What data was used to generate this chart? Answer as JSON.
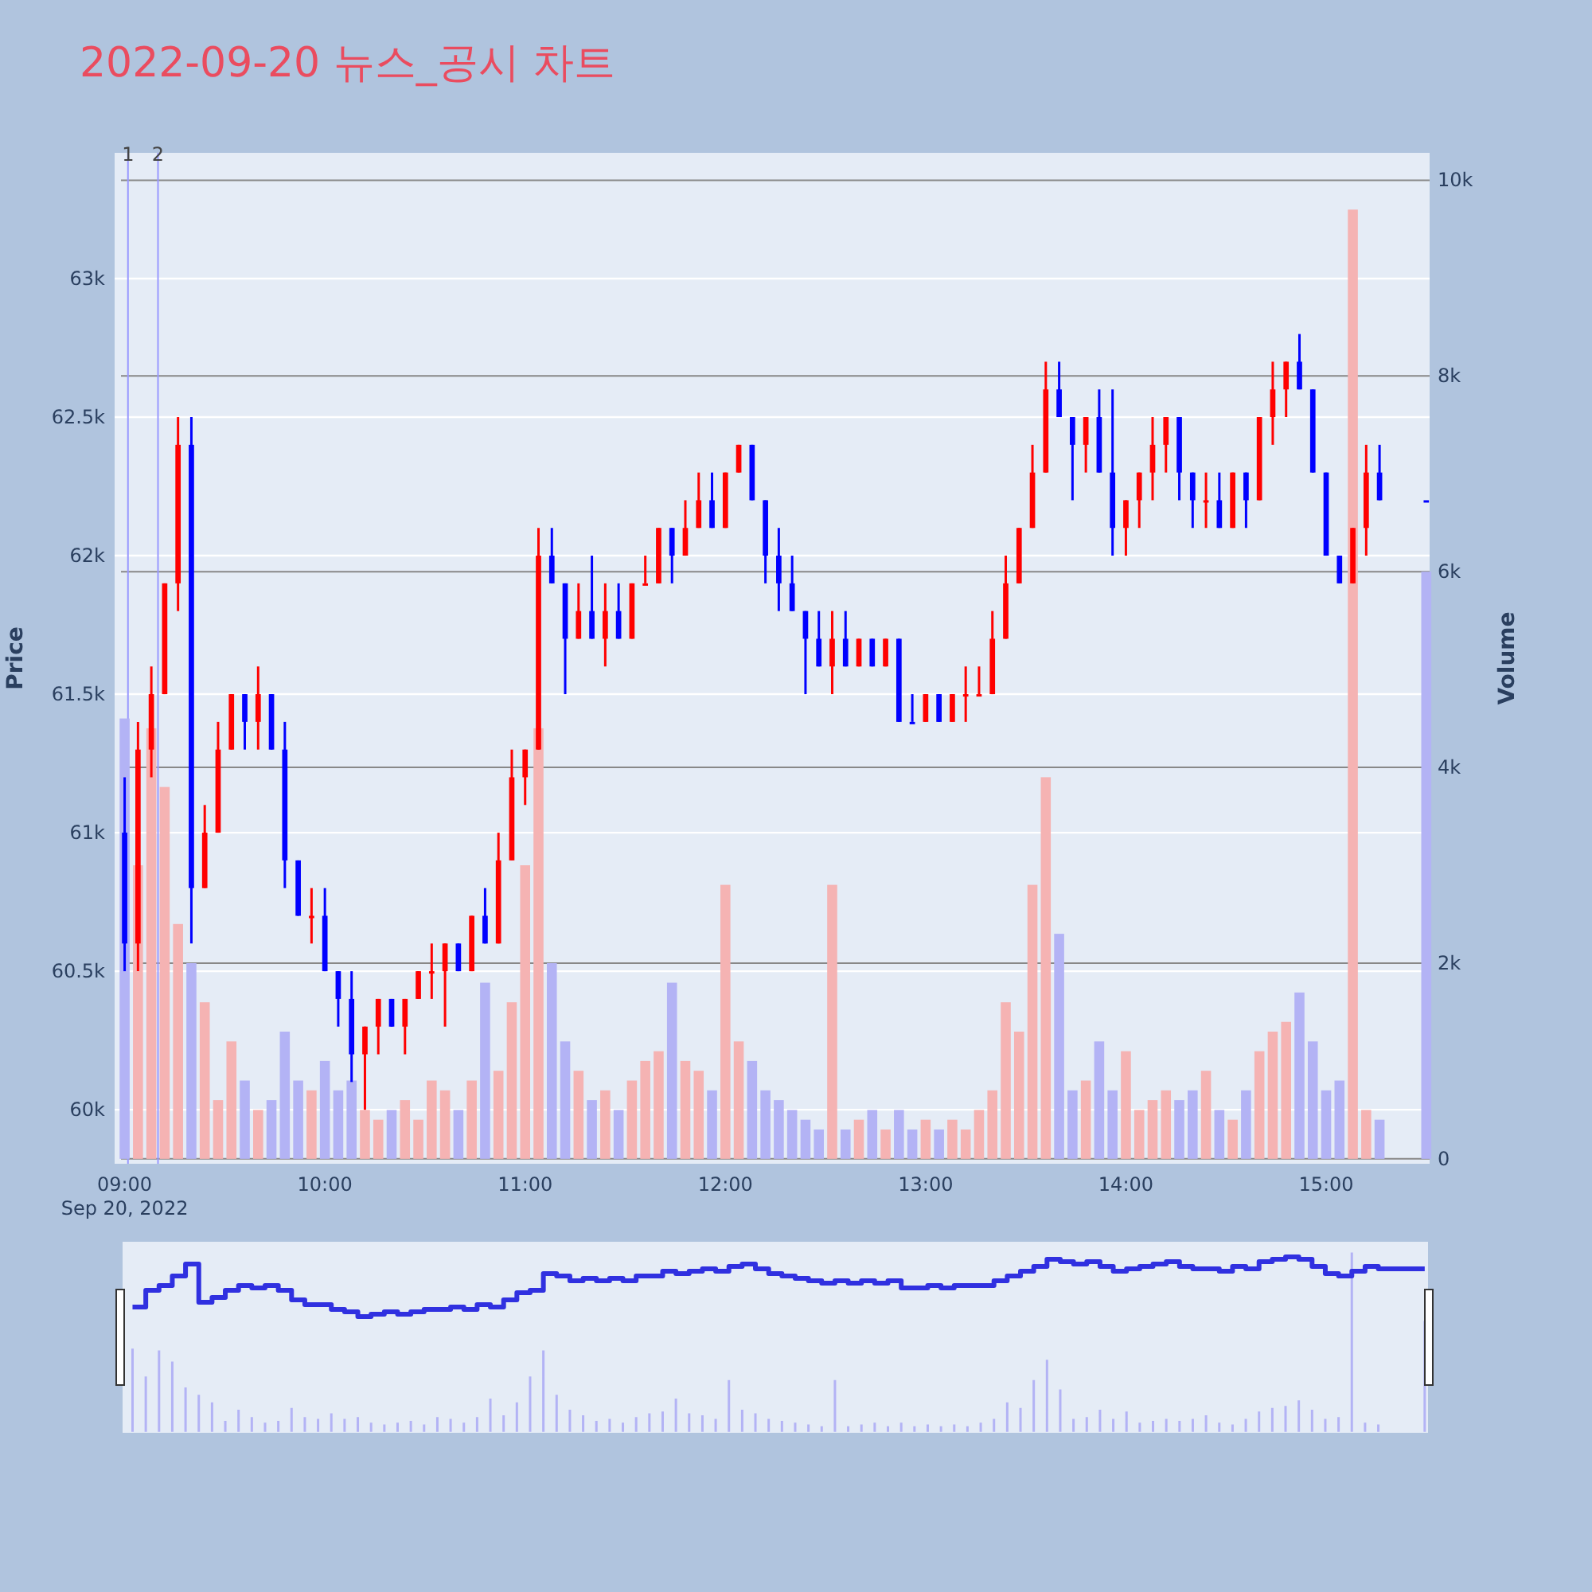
{
  "chart_data": {
    "type": "candlestick",
    "title": "2022-09-20 뉴스_공시 차트",
    "ylabel": "Price",
    "y2label": "Volume",
    "x": [
      "2022-09-20T09:00",
      "2022-09-20T09:04",
      "2022-09-20T09:08",
      "2022-09-20T09:12",
      "2022-09-20T09:16",
      "2022-09-20T09:20",
      "2022-09-20T09:24",
      "2022-09-20T09:28",
      "2022-09-20T09:32",
      "2022-09-20T09:36",
      "2022-09-20T09:40",
      "2022-09-20T09:44",
      "2022-09-20T09:48",
      "2022-09-20T09:52",
      "2022-09-20T09:56",
      "2022-09-20T10:00",
      "2022-09-20T10:04",
      "2022-09-20T10:08",
      "2022-09-20T10:12",
      "2022-09-20T10:16",
      "2022-09-20T10:20",
      "2022-09-20T10:24",
      "2022-09-20T10:28",
      "2022-09-20T10:32",
      "2022-09-20T10:36",
      "2022-09-20T10:40",
      "2022-09-20T10:44",
      "2022-09-20T10:48",
      "2022-09-20T10:52",
      "2022-09-20T10:56",
      "2022-09-20T11:00",
      "2022-09-20T11:04",
      "2022-09-20T11:08",
      "2022-09-20T11:12",
      "2022-09-20T11:16",
      "2022-09-20T11:20",
      "2022-09-20T11:24",
      "2022-09-20T11:28",
      "2022-09-20T11:32",
      "2022-09-20T11:36",
      "2022-09-20T11:40",
      "2022-09-20T11:44",
      "2022-09-20T11:48",
      "2022-09-20T11:52",
      "2022-09-20T11:56",
      "2022-09-20T12:00",
      "2022-09-20T12:04",
      "2022-09-20T12:08",
      "2022-09-20T12:12",
      "2022-09-20T12:16",
      "2022-09-20T12:20",
      "2022-09-20T12:24",
      "2022-09-20T12:28",
      "2022-09-20T12:32",
      "2022-09-20T12:36",
      "2022-09-20T12:40",
      "2022-09-20T12:44",
      "2022-09-20T12:48",
      "2022-09-20T12:52",
      "2022-09-20T12:56",
      "2022-09-20T13:00",
      "2022-09-20T13:04",
      "2022-09-20T13:08",
      "2022-09-20T13:12",
      "2022-09-20T13:16",
      "2022-09-20T13:20",
      "2022-09-20T13:24",
      "2022-09-20T13:28",
      "2022-09-20T13:32",
      "2022-09-20T13:36",
      "2022-09-20T13:40",
      "2022-09-20T13:44",
      "2022-09-20T13:48",
      "2022-09-20T13:52",
      "2022-09-20T13:56",
      "2022-09-20T14:00",
      "2022-09-20T14:04",
      "2022-09-20T14:08",
      "2022-09-20T14:12",
      "2022-09-20T14:16",
      "2022-09-20T14:20",
      "2022-09-20T14:24",
      "2022-09-20T14:28",
      "2022-09-20T14:32",
      "2022-09-20T14:36",
      "2022-09-20T14:40",
      "2022-09-20T14:44",
      "2022-09-20T14:48",
      "2022-09-20T14:52",
      "2022-09-20T14:56",
      "2022-09-20T15:00",
      "2022-09-20T15:04",
      "2022-09-20T15:08",
      "2022-09-20T15:12",
      "2022-09-20T15:16",
      "2022-09-20T15:30"
    ],
    "ohlc": [
      [
        61000,
        61200,
        60500,
        60600
      ],
      [
        60600,
        61400,
        60500,
        61300
      ],
      [
        61300,
        61600,
        61200,
        61500
      ],
      [
        61500,
        61900,
        61500,
        61900
      ],
      [
        61900,
        62500,
        61800,
        62400
      ],
      [
        62400,
        62500,
        60600,
        60800
      ],
      [
        60800,
        61100,
        60800,
        61000
      ],
      [
        61000,
        61400,
        61000,
        61300
      ],
      [
        61300,
        61500,
        61300,
        61500
      ],
      [
        61500,
        61500,
        61300,
        61400
      ],
      [
        61400,
        61600,
        61300,
        61500
      ],
      [
        61500,
        61500,
        61300,
        61300
      ],
      [
        61300,
        61400,
        60800,
        60900
      ],
      [
        60900,
        60900,
        60700,
        60700
      ],
      [
        60700,
        60800,
        60600,
        60700
      ],
      [
        60700,
        60800,
        60500,
        60500
      ],
      [
        60500,
        60500,
        60300,
        60400
      ],
      [
        60400,
        60500,
        60100,
        60200
      ],
      [
        60200,
        60300,
        60000,
        60300
      ],
      [
        60300,
        60400,
        60200,
        60400
      ],
      [
        60400,
        60400,
        60300,
        60300
      ],
      [
        60300,
        60400,
        60200,
        60400
      ],
      [
        60400,
        60500,
        60400,
        60500
      ],
      [
        60500,
        60600,
        60400,
        60500
      ],
      [
        60500,
        60600,
        60300,
        60600
      ],
      [
        60600,
        60600,
        60500,
        60500
      ],
      [
        60500,
        60700,
        60500,
        60700
      ],
      [
        60700,
        60800,
        60600,
        60600
      ],
      [
        60600,
        61000,
        60600,
        60900
      ],
      [
        60900,
        61300,
        60900,
        61200
      ],
      [
        61200,
        61300,
        61100,
        61300
      ],
      [
        61300,
        62100,
        61300,
        62000
      ],
      [
        62000,
        62100,
        61900,
        61900
      ],
      [
        61900,
        61900,
        61500,
        61700
      ],
      [
        61700,
        61900,
        61700,
        61800
      ],
      [
        61800,
        62000,
        61700,
        61700
      ],
      [
        61700,
        61900,
        61600,
        61800
      ],
      [
        61800,
        61900,
        61700,
        61700
      ],
      [
        61700,
        61900,
        61700,
        61900
      ],
      [
        61900,
        62000,
        61900,
        61900
      ],
      [
        61900,
        62100,
        61900,
        62100
      ],
      [
        62100,
        62100,
        61900,
        62000
      ],
      [
        62000,
        62200,
        62000,
        62100
      ],
      [
        62100,
        62300,
        62100,
        62200
      ],
      [
        62200,
        62300,
        62100,
        62100
      ],
      [
        62100,
        62300,
        62100,
        62300
      ],
      [
        62300,
        62400,
        62300,
        62400
      ],
      [
        62400,
        62400,
        62200,
        62200
      ],
      [
        62200,
        62200,
        61900,
        62000
      ],
      [
        62000,
        62100,
        61800,
        61900
      ],
      [
        61900,
        62000,
        61800,
        61800
      ],
      [
        61800,
        61800,
        61500,
        61700
      ],
      [
        61700,
        61800,
        61600,
        61600
      ],
      [
        61600,
        61800,
        61500,
        61700
      ],
      [
        61700,
        61800,
        61600,
        61600
      ],
      [
        61600,
        61700,
        61600,
        61700
      ],
      [
        61700,
        61700,
        61600,
        61600
      ],
      [
        61600,
        61700,
        61600,
        61700
      ],
      [
        61700,
        61700,
        61400,
        61400
      ],
      [
        61400,
        61500,
        61400,
        61400
      ],
      [
        61400,
        61500,
        61400,
        61500
      ],
      [
        61500,
        61500,
        61400,
        61400
      ],
      [
        61400,
        61500,
        61400,
        61500
      ],
      [
        61500,
        61600,
        61400,
        61500
      ],
      [
        61500,
        61600,
        61500,
        61500
      ],
      [
        61500,
        61800,
        61500,
        61700
      ],
      [
        61700,
        62000,
        61700,
        61900
      ],
      [
        61900,
        62100,
        61900,
        62100
      ],
      [
        62100,
        62400,
        62100,
        62300
      ],
      [
        62300,
        62700,
        62300,
        62600
      ],
      [
        62600,
        62700,
        62500,
        62500
      ],
      [
        62500,
        62500,
        62200,
        62400
      ],
      [
        62400,
        62500,
        62300,
        62500
      ],
      [
        62500,
        62600,
        62300,
        62300
      ],
      [
        62300,
        62600,
        62000,
        62100
      ],
      [
        62100,
        62200,
        62000,
        62200
      ],
      [
        62200,
        62300,
        62100,
        62300
      ],
      [
        62300,
        62500,
        62200,
        62400
      ],
      [
        62400,
        62500,
        62300,
        62500
      ],
      [
        62500,
        62500,
        62200,
        62300
      ],
      [
        62300,
        62300,
        62100,
        62200
      ],
      [
        62200,
        62300,
        62100,
        62200
      ],
      [
        62200,
        62300,
        62100,
        62100
      ],
      [
        62100,
        62300,
        62100,
        62300
      ],
      [
        62300,
        62300,
        62100,
        62200
      ],
      [
        62200,
        62500,
        62200,
        62500
      ],
      [
        62500,
        62700,
        62400,
        62600
      ],
      [
        62600,
        62700,
        62500,
        62700
      ],
      [
        62700,
        62800,
        62600,
        62600
      ],
      [
        62600,
        62600,
        62300,
        62300
      ],
      [
        62300,
        62300,
        62000,
        62000
      ],
      [
        62000,
        62000,
        61900,
        61900
      ],
      [
        61900,
        62100,
        61900,
        62100
      ],
      [
        62100,
        62400,
        62000,
        62300
      ],
      [
        62300,
        62400,
        62200,
        62200
      ],
      [
        62200,
        62200,
        62200,
        62200
      ]
    ],
    "colors": [
      "#0000ff",
      "#ff0000",
      "#ff0000",
      "#ff0000",
      "#ff0000",
      "#0000ff",
      "#ff0000",
      "#ff0000",
      "#ff0000",
      "#0000ff",
      "#ff0000",
      "#0000ff",
      "#0000ff",
      "#0000ff",
      "#ff0000",
      "#0000ff",
      "#0000ff",
      "#0000ff",
      "#ff0000",
      "#ff0000",
      "#0000ff",
      "#ff0000",
      "#ff0000",
      "#ff0000",
      "#ff0000",
      "#0000ff",
      "#ff0000",
      "#0000ff",
      "#ff0000",
      "#ff0000",
      "#ff0000",
      "#ff0000",
      "#0000ff",
      "#0000ff",
      "#ff0000",
      "#0000ff",
      "#ff0000",
      "#0000ff",
      "#ff0000",
      "#ff0000",
      "#ff0000",
      "#0000ff",
      "#ff0000",
      "#ff0000",
      "#0000ff",
      "#ff0000",
      "#ff0000",
      "#0000ff",
      "#0000ff",
      "#0000ff",
      "#0000ff",
      "#0000ff",
      "#0000ff",
      "#ff0000",
      "#0000ff",
      "#ff0000",
      "#0000ff",
      "#ff0000",
      "#0000ff",
      "#0000ff",
      "#ff0000",
      "#0000ff",
      "#ff0000",
      "#ff0000",
      "#ff0000",
      "#ff0000",
      "#ff0000",
      "#ff0000",
      "#ff0000",
      "#ff0000",
      "#0000ff",
      "#0000ff",
      "#ff0000",
      "#0000ff",
      "#0000ff",
      "#ff0000",
      "#ff0000",
      "#ff0000",
      "#ff0000",
      "#0000ff",
      "#0000ff",
      "#ff0000",
      "#0000ff",
      "#ff0000",
      "#0000ff",
      "#ff0000",
      "#ff0000",
      "#ff0000",
      "#0000ff",
      "#0000ff",
      "#0000ff",
      "#0000ff",
      "#ff0000",
      "#ff0000",
      "#0000ff",
      "#0000ff"
    ],
    "series": [
      {
        "type": "bar",
        "axis": "y2",
        "values": [
          4500,
          3000,
          4400,
          3800,
          2400,
          2000,
          1600,
          600,
          1200,
          800,
          500,
          600,
          1300,
          800,
          700,
          1000,
          700,
          800,
          500,
          400,
          500,
          600,
          400,
          800,
          700,
          500,
          800,
          1800,
          900,
          1600,
          3000,
          4400,
          2000,
          1200,
          900,
          600,
          700,
          500,
          800,
          1000,
          1100,
          1800,
          1000,
          900,
          700,
          2800,
          1200,
          1000,
          700,
          600,
          500,
          400,
          300,
          2800,
          300,
          400,
          500,
          300,
          500,
          300,
          400,
          300,
          400,
          300,
          500,
          700,
          1600,
          1300,
          2800,
          3900,
          2300,
          700,
          800,
          1200,
          700,
          1100,
          500,
          600,
          700,
          600,
          700,
          900,
          500,
          400,
          700,
          1100,
          1300,
          1400,
          1700,
          1200,
          700,
          800,
          9700,
          500,
          400,
          6000
        ],
        "colors": [
          "#b3b3f5",
          "#f5b3b3",
          "#f5b3b3",
          "#f5b3b3",
          "#f5b3b3",
          "#b3b3f5",
          "#f5b3b3",
          "#f5b3b3",
          "#f5b3b3",
          "#b3b3f5",
          "#f5b3b3",
          "#b3b3f5",
          "#b3b3f5",
          "#b3b3f5",
          "#f5b3b3",
          "#b3b3f5",
          "#b3b3f5",
          "#b3b3f5",
          "#f5b3b3",
          "#f5b3b3",
          "#b3b3f5",
          "#f5b3b3",
          "#f5b3b3",
          "#f5b3b3",
          "#f5b3b3",
          "#b3b3f5",
          "#f5b3b3",
          "#b3b3f5",
          "#f5b3b3",
          "#f5b3b3",
          "#f5b3b3",
          "#f5b3b3",
          "#b3b3f5",
          "#b3b3f5",
          "#f5b3b3",
          "#b3b3f5",
          "#f5b3b3",
          "#b3b3f5",
          "#f5b3b3",
          "#f5b3b3",
          "#f5b3b3",
          "#b3b3f5",
          "#f5b3b3",
          "#f5b3b3",
          "#b3b3f5",
          "#f5b3b3",
          "#f5b3b3",
          "#b3b3f5",
          "#b3b3f5",
          "#b3b3f5",
          "#b3b3f5",
          "#b3b3f5",
          "#b3b3f5",
          "#f5b3b3",
          "#b3b3f5",
          "#f5b3b3",
          "#b3b3f5",
          "#f5b3b3",
          "#b3b3f5",
          "#b3b3f5",
          "#f5b3b3",
          "#b3b3f5",
          "#f5b3b3",
          "#f5b3b3",
          "#f5b3b3",
          "#f5b3b3",
          "#f5b3b3",
          "#f5b3b3",
          "#f5b3b3",
          "#f5b3b3",
          "#b3b3f5",
          "#b3b3f5",
          "#f5b3b3",
          "#b3b3f5",
          "#b3b3f5",
          "#f5b3b3",
          "#f5b3b3",
          "#f5b3b3",
          "#f5b3b3",
          "#b3b3f5",
          "#b3b3f5",
          "#f5b3b3",
          "#b3b3f5",
          "#f5b3b3",
          "#b3b3f5",
          "#f5b3b3",
          "#f5b3b3",
          "#f5b3b3",
          "#b3b3f5",
          "#b3b3f5",
          "#b3b3f5",
          "#b3b3f5",
          "#f5b3b3",
          "#f5b3b3",
          "#b3b3f5",
          "#b3b3f5"
        ]
      }
    ],
    "xlim": [
      "2022-09-20T08:57",
      "2022-09-20T15:31"
    ],
    "xticks": [
      {
        "value": "2022-09-20T09:00",
        "label": "09:00\nSep 20, 2022"
      },
      {
        "value": "2022-09-20T10:00",
        "label": "10:00"
      },
      {
        "value": "2022-09-20T11:00",
        "label": "11:00"
      },
      {
        "value": "2022-09-20T12:00",
        "label": "12:00"
      },
      {
        "value": "2022-09-20T13:00",
        "label": "13:00"
      },
      {
        "value": "2022-09-20T14:00",
        "label": "14:00"
      },
      {
        "value": "2022-09-20T15:00",
        "label": "15:00"
      }
    ],
    "ylim": [
      59805,
      63454
    ],
    "yticks": [
      {
        "value": 60000,
        "label": "60k"
      },
      {
        "value": 60500,
        "label": "60.5k"
      },
      {
        "value": 61000,
        "label": "61k"
      },
      {
        "value": 61500,
        "label": "61.5k"
      },
      {
        "value": 62000,
        "label": "62k"
      },
      {
        "value": 62500,
        "label": "62.5k"
      },
      {
        "value": 63000,
        "label": "63k"
      }
    ],
    "y2lim": [
      -50,
      10280
    ],
    "y2ticks": [
      0,
      {
        "value": 2000,
        "label": "2k"
      },
      {
        "value": 4000,
        "label": "4k"
      },
      {
        "value": 6000,
        "label": "6k"
      },
      {
        "value": 8000,
        "label": "8k"
      },
      {
        "value": 10000,
        "label": "10k"
      }
    ],
    "ref_lines": [
      {
        "axis": "x",
        "value": "2022-09-20T09:01",
        "label": "1",
        "color": "#9999ff"
      },
      {
        "axis": "x",
        "value": "2022-09-20T09:10",
        "label": "2",
        "color": "#9999ff"
      }
    ],
    "grid": "y"
  }
}
